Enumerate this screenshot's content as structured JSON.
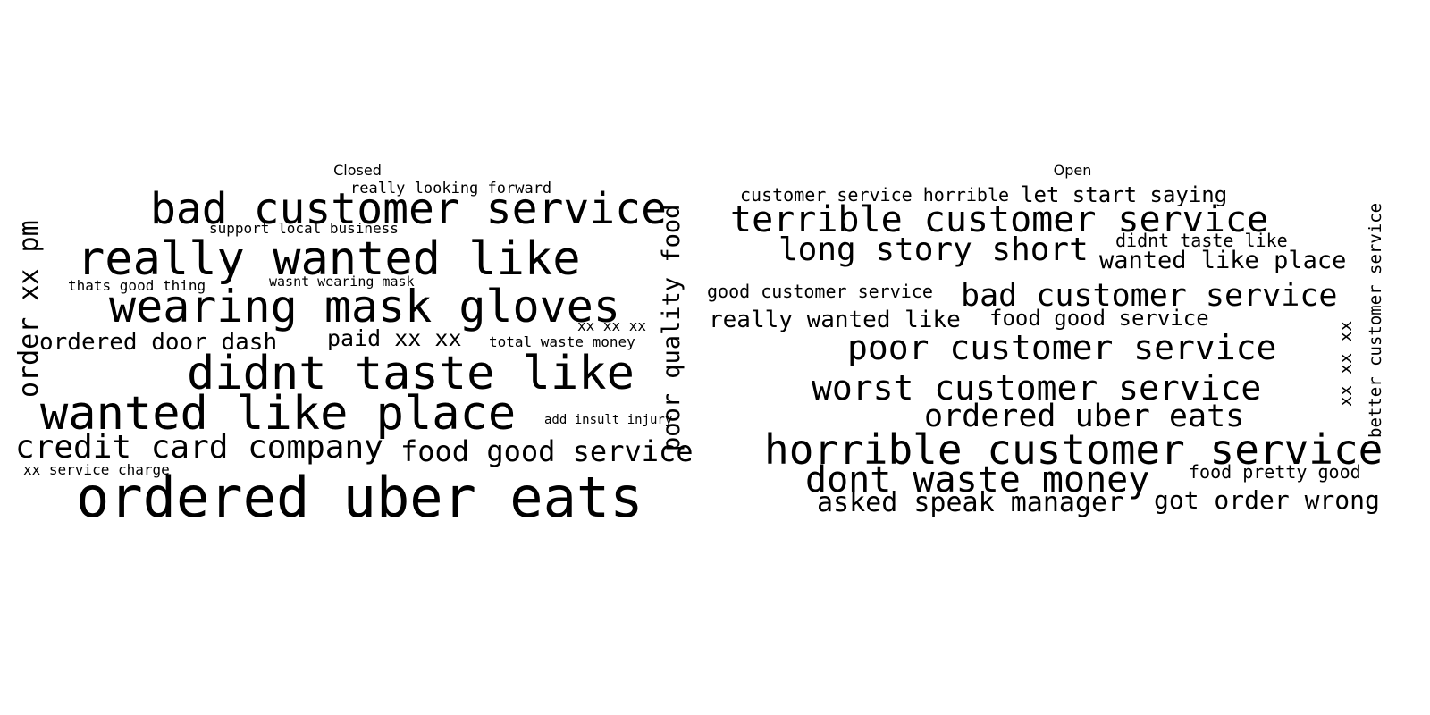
{
  "panels": [
    {
      "title": "Closed",
      "words": [
        {
          "text": "really looking forward"
        },
        {
          "text": "bad customer service"
        },
        {
          "text": "support local business"
        },
        {
          "text": "really wanted like"
        },
        {
          "text": "thats good thing"
        },
        {
          "text": "wasnt wearing mask"
        },
        {
          "text": "wearing mask gloves"
        },
        {
          "text": "xx xx xx"
        },
        {
          "text": "ordered door dash"
        },
        {
          "text": "paid xx xx"
        },
        {
          "text": "total waste money"
        },
        {
          "text": "didnt taste like"
        },
        {
          "text": "wanted like place"
        },
        {
          "text": "add insult injury"
        },
        {
          "text": "credit card company"
        },
        {
          "text": "food good service"
        },
        {
          "text": "xx service charge"
        },
        {
          "text": "ordered uber eats"
        },
        {
          "text": "order xx pm"
        },
        {
          "text": "poor quality food"
        }
      ]
    },
    {
      "title": "Open",
      "words": [
        {
          "text": "customer service horrible"
        },
        {
          "text": "let start saying"
        },
        {
          "text": "terrible customer service"
        },
        {
          "text": "long story short"
        },
        {
          "text": "didnt taste like"
        },
        {
          "text": "wanted like place"
        },
        {
          "text": "good customer service"
        },
        {
          "text": "bad customer service"
        },
        {
          "text": "really wanted like"
        },
        {
          "text": "food good service"
        },
        {
          "text": "poor customer service"
        },
        {
          "text": "worst customer service"
        },
        {
          "text": "ordered uber eats"
        },
        {
          "text": "horrible customer service"
        },
        {
          "text": "dont waste money"
        },
        {
          "text": "food pretty good"
        },
        {
          "text": "asked speak manager"
        },
        {
          "text": "got order wrong"
        },
        {
          "text": "xx xx xx"
        },
        {
          "text": "better customer service"
        }
      ]
    }
  ]
}
